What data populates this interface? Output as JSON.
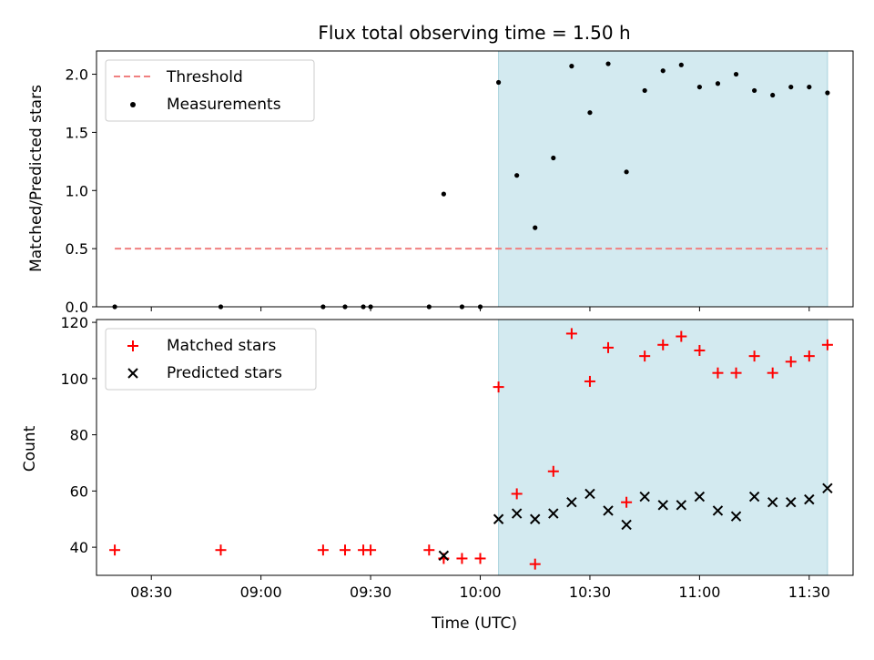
{
  "chart_data": [
    {
      "type": "scatter",
      "panel": "top",
      "title": "Flux total observing time = 1.50 h",
      "xlabel": "",
      "ylabel": "Matched/Predicted stars",
      "ylim": [
        0,
        2.2
      ],
      "yticks": [
        0.0,
        0.5,
        1.0,
        1.5,
        2.0
      ],
      "ytick_labels": [
        "0.0",
        "0.5",
        "1.0",
        "1.5",
        "2.0"
      ],
      "xlim_minutes": [
        495,
        702
      ],
      "xticks_minutes": [
        510,
        540,
        570,
        600,
        630,
        660,
        690
      ],
      "shaded_region_minutes": [
        605,
        695
      ],
      "shaded_color": "#d3eaf0",
      "legend_position": "upper left",
      "series": [
        {
          "name": "Threshold",
          "kind": "dashed-line",
          "color": "#f08080",
          "x": [
            500,
            695
          ],
          "y": [
            0.5,
            0.5
          ]
        },
        {
          "name": "Measurements",
          "kind": "dot",
          "color": "#000000",
          "x": [
            500,
            529,
            557,
            563,
            568,
            570,
            586,
            595,
            600,
            605,
            610,
            615,
            620,
            625,
            630,
            635,
            640,
            645,
            650,
            655,
            660,
            665,
            670,
            675,
            680,
            685,
            690,
            695
          ],
          "y": [
            0.0,
            0.0,
            0.0,
            0.0,
            0.0,
            0.0,
            0.0,
            0.0,
            0.0,
            1.93,
            1.13,
            0.68,
            1.28,
            2.07,
            1.67,
            2.09,
            1.16,
            1.86,
            2.03,
            2.08,
            1.89,
            1.92,
            2.0,
            1.86,
            1.82,
            1.89,
            1.89,
            1.84
          ],
          "y_alt": [
            0.97
          ]
        }
      ]
    },
    {
      "type": "scatter",
      "panel": "bottom",
      "xlabel": "Time (UTC)",
      "ylabel": "Count",
      "ylim": [
        30,
        121
      ],
      "yticks": [
        40,
        60,
        80,
        100,
        120
      ],
      "ytick_labels": [
        "40",
        "60",
        "80",
        "100",
        "120"
      ],
      "xlim_minutes": [
        495,
        702
      ],
      "xticks_minutes": [
        510,
        540,
        570,
        600,
        630,
        660,
        690
      ],
      "xtick_labels": [
        "08:30",
        "09:00",
        "09:30",
        "10:00",
        "10:30",
        "11:00",
        "11:30"
      ],
      "shaded_region_minutes": [
        605,
        695
      ],
      "shaded_color": "#d3eaf0",
      "legend_position": "upper left",
      "series": [
        {
          "name": "Matched stars",
          "marker": "plus",
          "color": "#ff0000",
          "x": [
            500,
            529,
            557,
            563,
            568,
            570,
            586,
            590,
            595,
            600,
            605,
            610,
            615,
            620,
            625,
            630,
            635,
            640,
            645,
            650,
            655,
            660,
            665,
            670,
            675,
            680,
            685,
            690,
            695
          ],
          "y": [
            39,
            39,
            39,
            39,
            39,
            39,
            39,
            36,
            36,
            36,
            97,
            59,
            34,
            67,
            116,
            99,
            111,
            56,
            108,
            112,
            115,
            110,
            102,
            102,
            108,
            102,
            106,
            108,
            112
          ]
        },
        {
          "name": "Predicted stars",
          "marker": "x",
          "color": "#000000",
          "x": [
            590,
            605,
            610,
            615,
            620,
            625,
            630,
            635,
            640,
            645,
            650,
            655,
            660,
            665,
            670,
            675,
            680,
            685,
            690,
            695
          ],
          "y": [
            37,
            50,
            52,
            50,
            52,
            56,
            59,
            53,
            48,
            58,
            55,
            55,
            58,
            53,
            51,
            58,
            56,
            56,
            57,
            61
          ]
        }
      ]
    }
  ]
}
